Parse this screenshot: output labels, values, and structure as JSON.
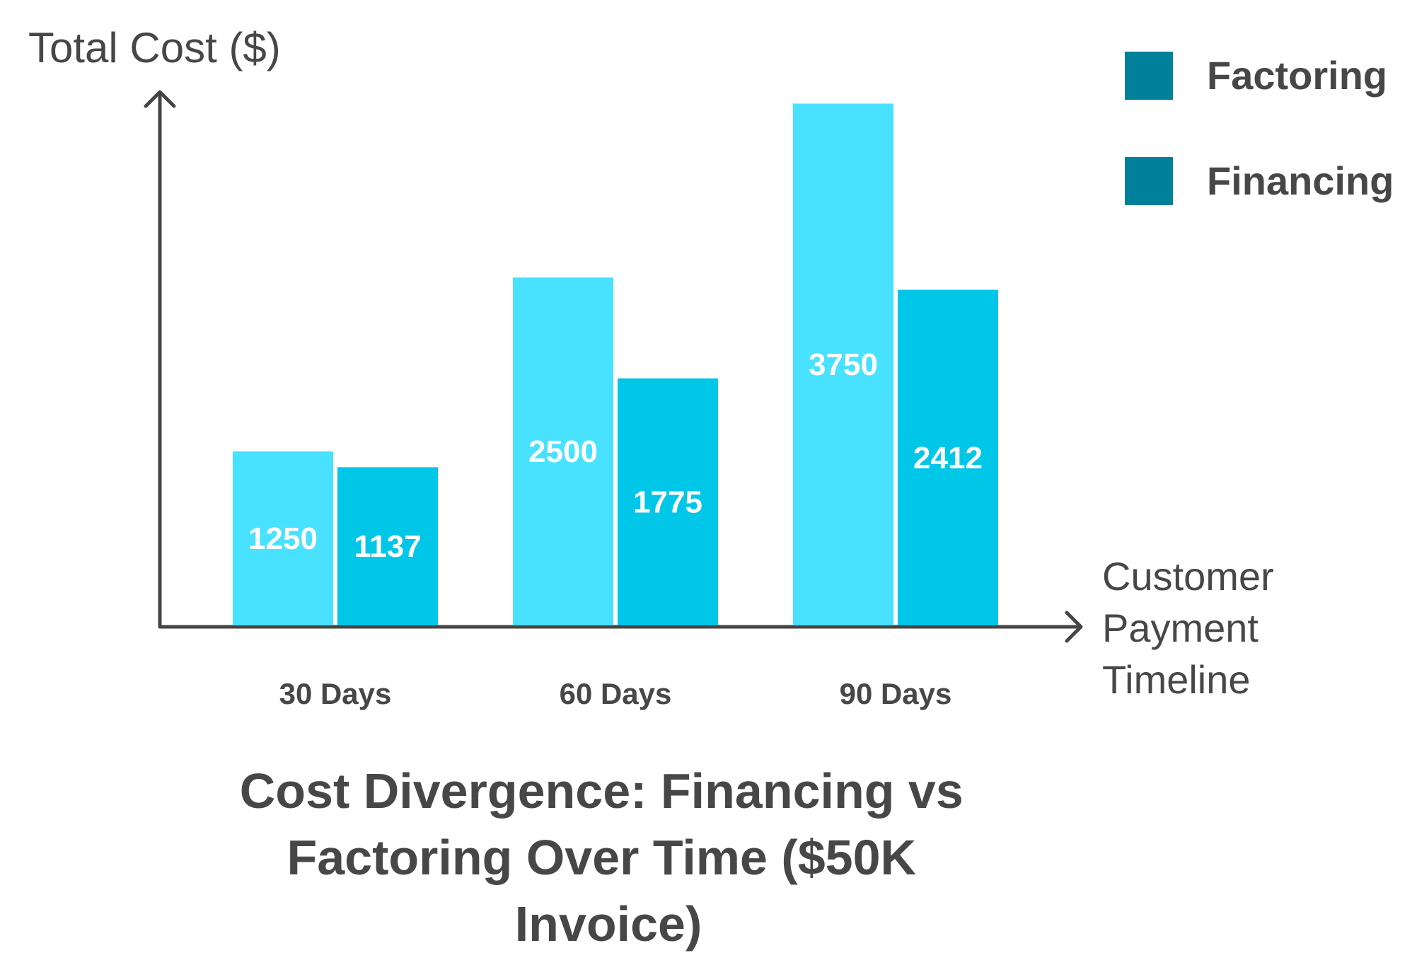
{
  "chart_data": {
    "type": "bar",
    "title": "Cost Divergence: Financing vs Factoring Over Time ($50K Invoice)",
    "title_lines": [
      "Cost Divergence: Financing vs",
      "Factoring Over Time ($50K",
      "Invoice)"
    ],
    "ylabel": "Total Cost ($)",
    "xlabel": "Customer Payment Timeline",
    "xlabel_lines": [
      "Customer",
      "Payment",
      "Timeline"
    ],
    "categories": [
      "30 Days",
      "60 Days",
      "90 Days"
    ],
    "series": [
      {
        "name": "Factoring",
        "values": [
          1250,
          2500,
          3750
        ],
        "color": "#48E1FF"
      },
      {
        "name": "Financing",
        "values": [
          1137,
          1775,
          2412
        ],
        "color": "#00C6E8"
      }
    ],
    "legend": {
      "placement": "top-right",
      "swatch_color": "#00809A",
      "entries": [
        "Factoring",
        "Financing"
      ]
    },
    "ylim": [
      0,
      4000
    ],
    "grid": false,
    "axis_color": "#454545",
    "text_color": "#474747",
    "value_label_color": "#ffffff"
  }
}
